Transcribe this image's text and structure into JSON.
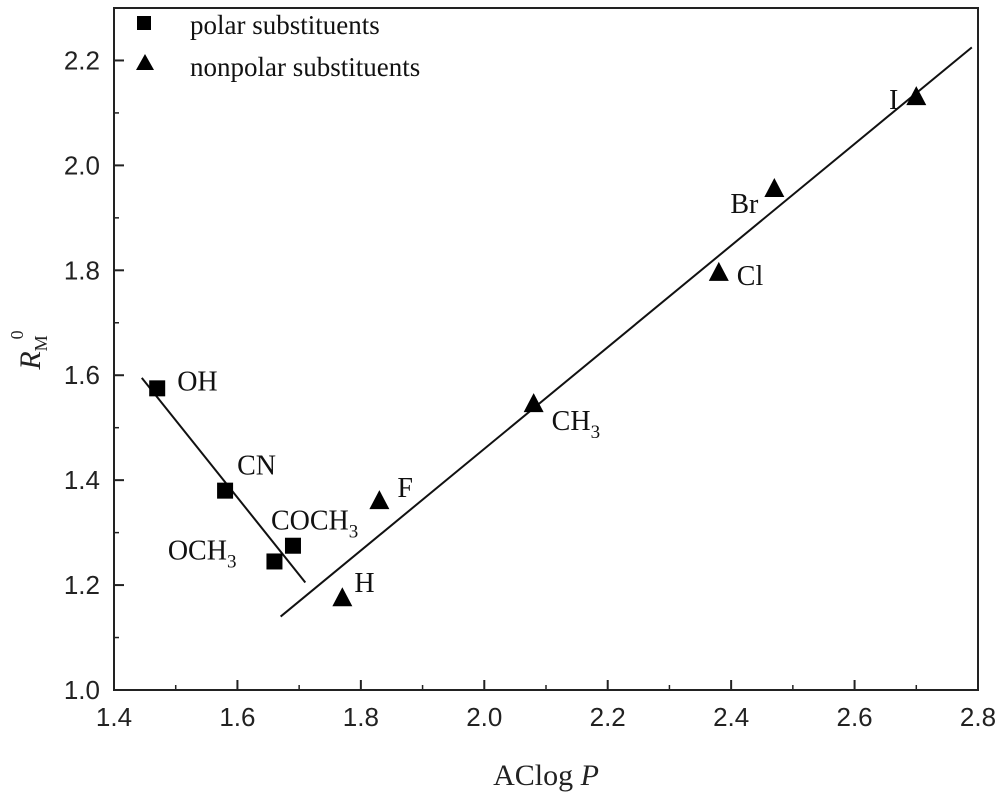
{
  "chart_data": {
    "type": "scatter",
    "xlabel": {
      "main": "AClog",
      "italic": "P"
    },
    "ylabel": {
      "main": "R",
      "sub": "M",
      "sup": "0"
    },
    "xlim": [
      1.4,
      2.8
    ],
    "ylim": [
      1.0,
      2.3
    ],
    "xticks": [
      "1.4",
      "1.6",
      "1.8",
      "2.0",
      "2.2",
      "2.4",
      "2.6",
      "2.8"
    ],
    "yticks": [
      "1.0",
      "1.2",
      "1.4",
      "1.6",
      "1.8",
      "2.0",
      "2.2"
    ],
    "grid": false,
    "legend_position": "top-left",
    "series": [
      {
        "name": "polar substituents",
        "marker": "square",
        "points": [
          {
            "label": "OH",
            "x": 1.47,
            "y": 1.575
          },
          {
            "label": "CN",
            "x": 1.58,
            "y": 1.38
          },
          {
            "label": "OCH3",
            "x": 1.66,
            "y": 1.245
          },
          {
            "label": "COCH3",
            "x": 1.69,
            "y": 1.275
          }
        ],
        "fit_line": {
          "x": [
            1.445,
            1.71
          ],
          "y": [
            1.595,
            1.205
          ]
        }
      },
      {
        "name": "nonpolar substituents",
        "marker": "triangle",
        "points": [
          {
            "label": "H",
            "x": 1.77,
            "y": 1.175
          },
          {
            "label": "F",
            "x": 1.83,
            "y": 1.36
          },
          {
            "label": "CH3",
            "x": 2.08,
            "y": 1.545
          },
          {
            "label": "Cl",
            "x": 2.38,
            "y": 1.795
          },
          {
            "label": "Br",
            "x": 2.47,
            "y": 1.955
          },
          {
            "label": "I",
            "x": 2.7,
            "y": 2.13
          }
        ],
        "fit_line": {
          "x": [
            1.67,
            2.79
          ],
          "y": [
            1.14,
            2.225
          ]
        }
      }
    ]
  }
}
